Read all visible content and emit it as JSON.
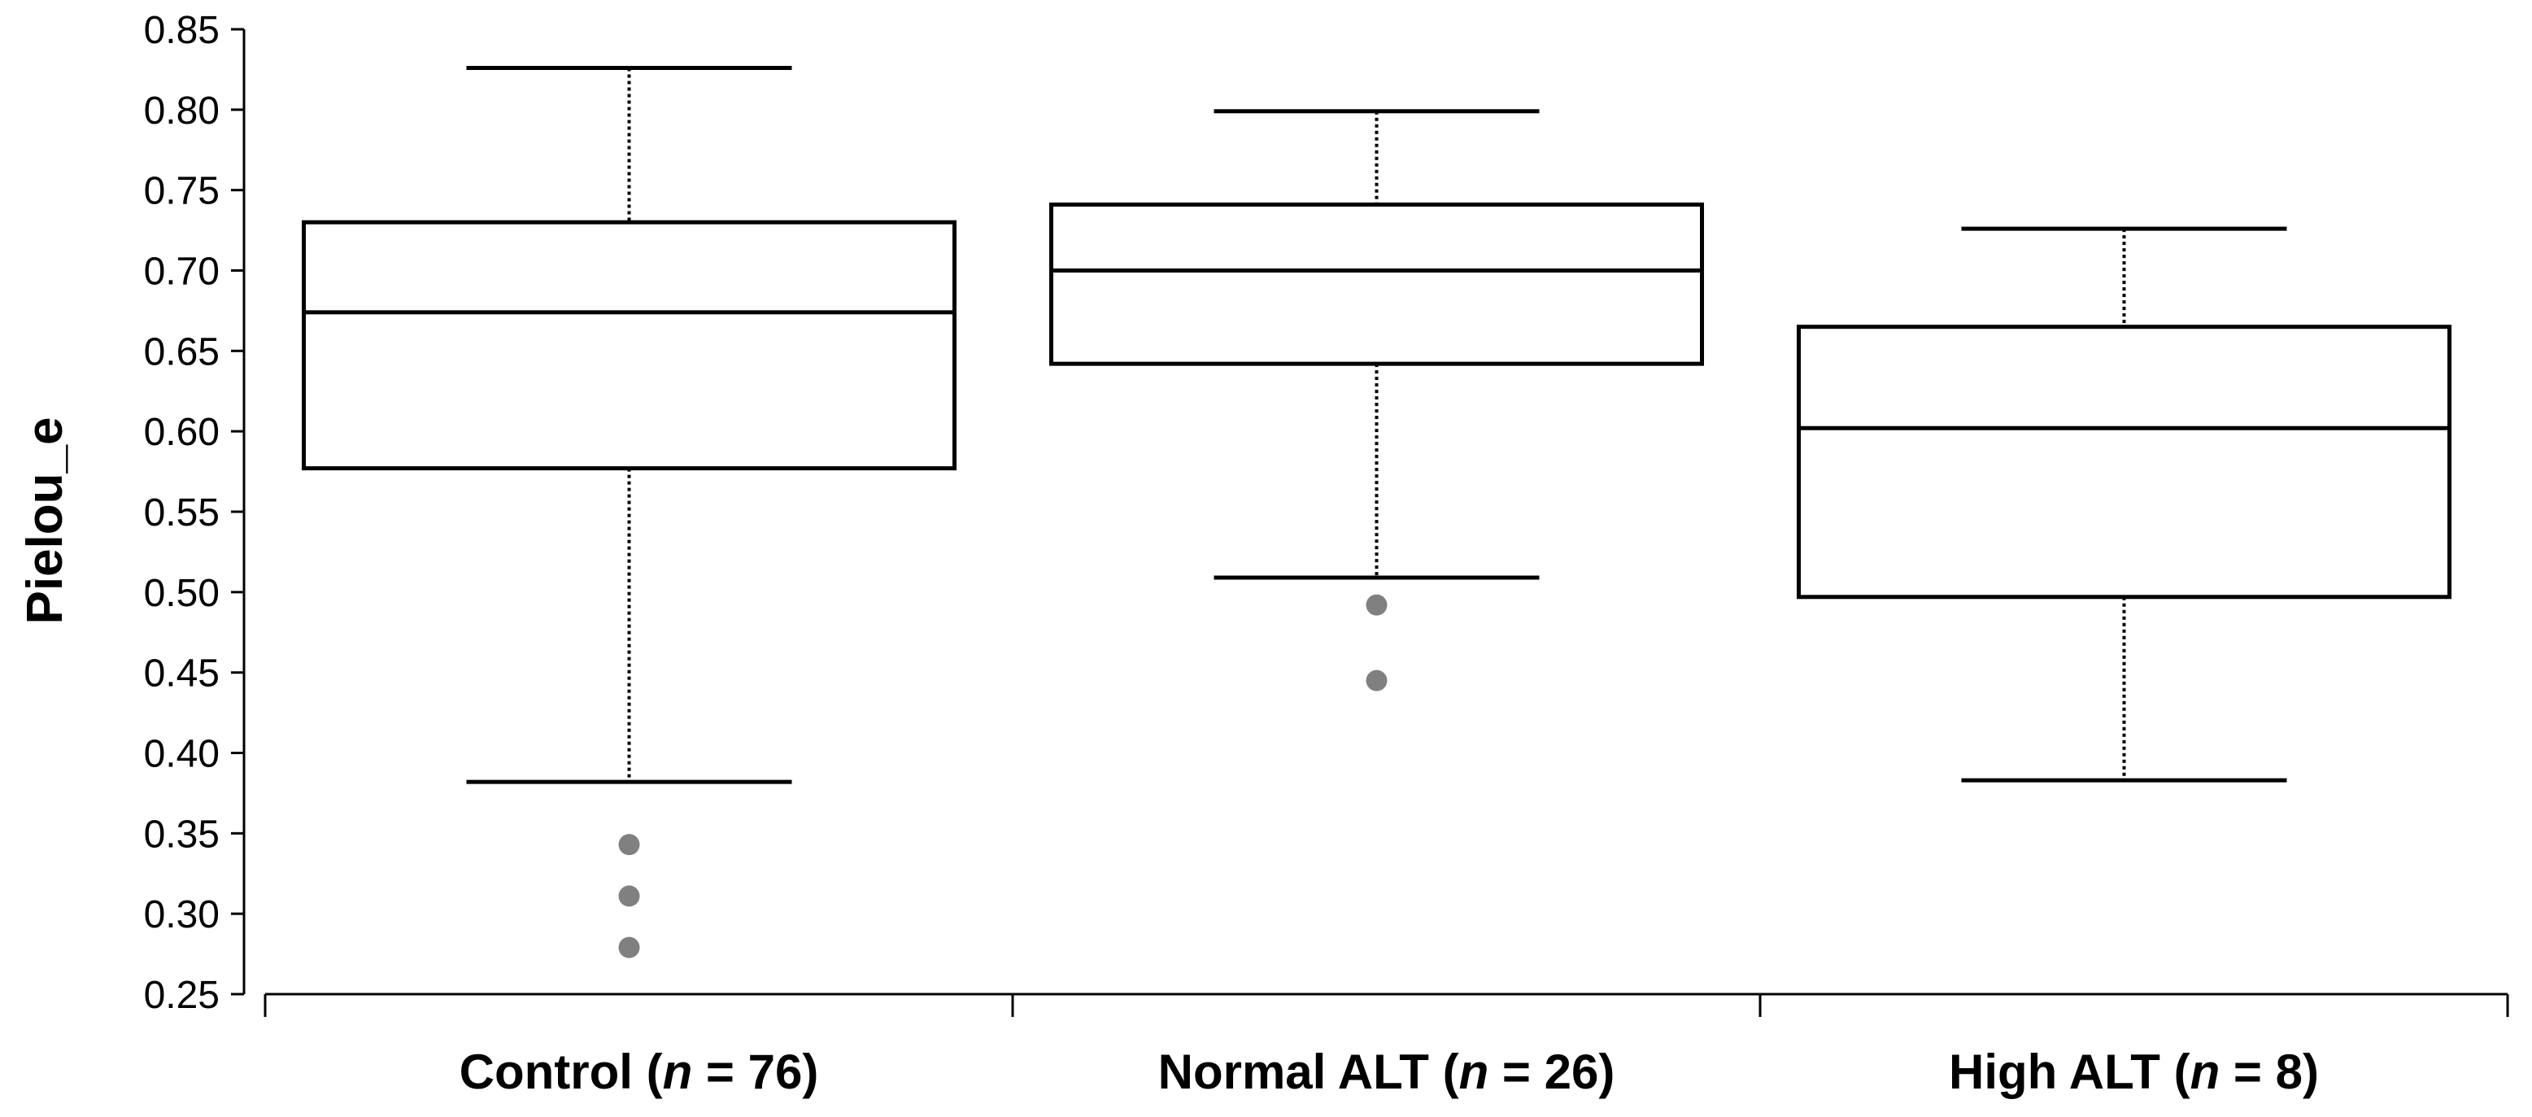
{
  "chart_data": {
    "type": "box",
    "ylabel": "Pielou_e",
    "ylim": [
      0.25,
      0.85
    ],
    "yticks": [
      "0.25",
      "0.30",
      "0.35",
      "0.40",
      "0.45",
      "0.50",
      "0.55",
      "0.60",
      "0.65",
      "0.70",
      "0.75",
      "0.80",
      "0.85"
    ],
    "grid": false,
    "groups": [
      {
        "label": "Control",
        "n": "76",
        "whisker_low": 0.382,
        "q1": 0.577,
        "median": 0.674,
        "q3": 0.73,
        "whisker_high": 0.826,
        "outliers": [
          0.343,
          0.311,
          0.279
        ]
      },
      {
        "label": "Normal ALT",
        "n": "26",
        "whisker_low": 0.509,
        "q1": 0.642,
        "median": 0.7,
        "q3": 0.741,
        "whisker_high": 0.799,
        "outliers": [
          0.492,
          0.445
        ]
      },
      {
        "label": "High ALT",
        "n": "8",
        "whisker_low": 0.383,
        "q1": 0.497,
        "median": 0.602,
        "q3": 0.665,
        "whisker_high": 0.726,
        "outliers": []
      }
    ],
    "colors": {
      "box_stroke": "#000000",
      "outlier_fill": "#808080"
    }
  }
}
